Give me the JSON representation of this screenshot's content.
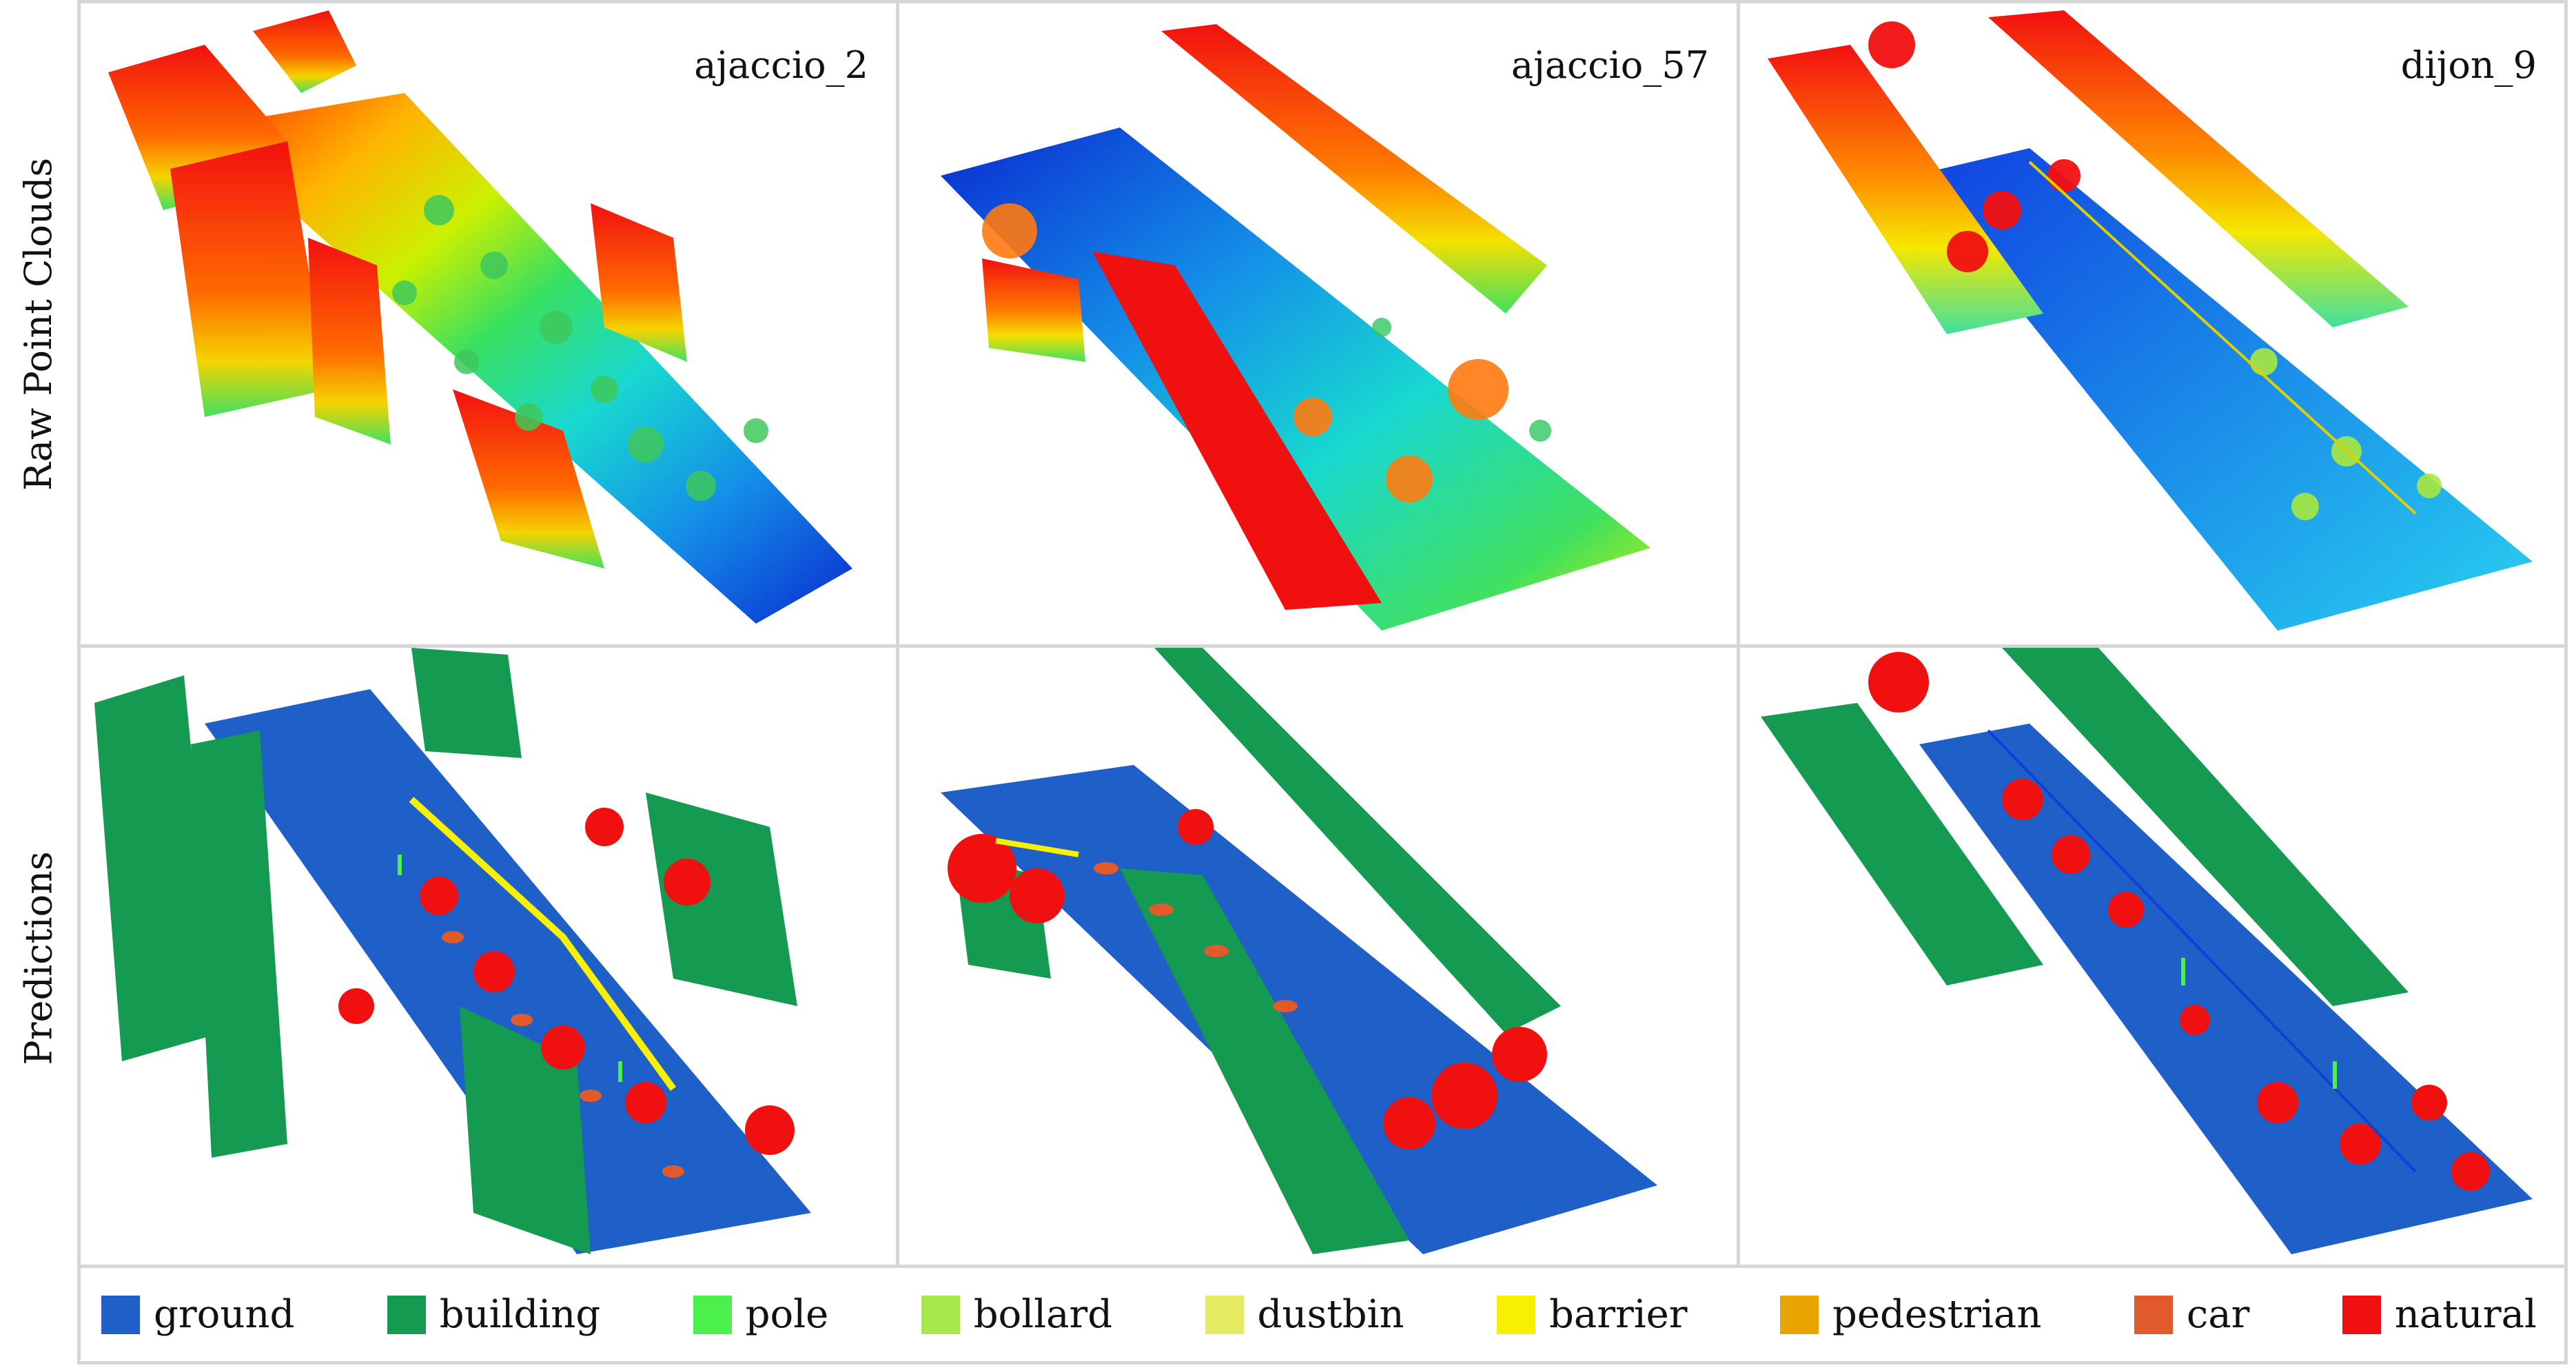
{
  "row_labels": {
    "top": "Raw Point Clouds",
    "bottom": "Predictions"
  },
  "scenes": [
    "ajaccio_2",
    "ajaccio_57",
    "dijon_9"
  ],
  "legend": [
    {
      "label": "ground",
      "color": "#1f5fc8"
    },
    {
      "label": "building",
      "color": "#159a52"
    },
    {
      "label": "pole",
      "color": "#4cf04c"
    },
    {
      "label": "bollard",
      "color": "#a6e84a"
    },
    {
      "label": "dustbin",
      "color": "#e6ec62"
    },
    {
      "label": "barrier",
      "color": "#f7f000"
    },
    {
      "label": "pedestrian",
      "color": "#eaa400"
    },
    {
      "label": "car",
      "color": "#e05a2c"
    },
    {
      "label": "natural",
      "color": "#f01010"
    }
  ]
}
